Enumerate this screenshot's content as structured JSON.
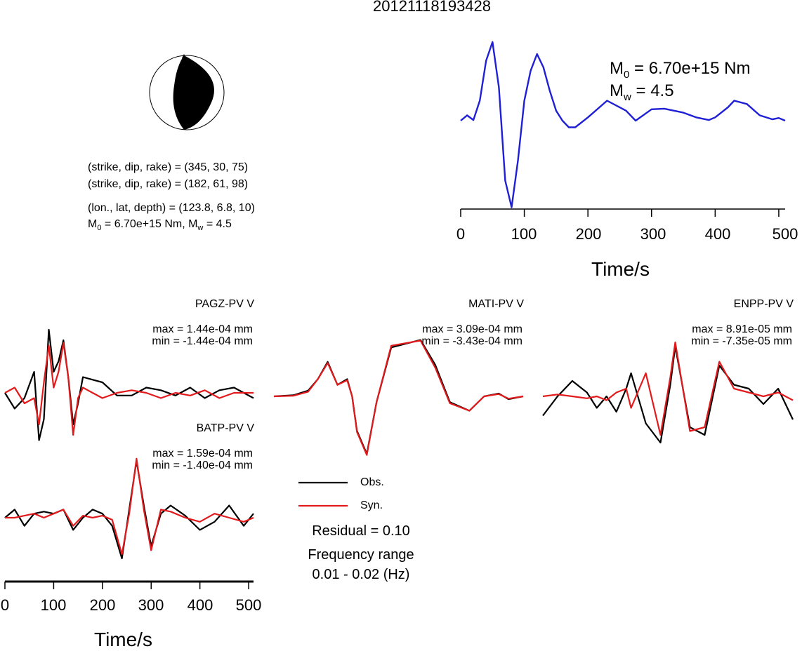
{
  "title": "20121118193428",
  "focal": {
    "plane1": "(strike, dip, rake) = (345, 30, 75)",
    "plane2": "(strike, dip, rake) = (182, 61, 98)",
    "location": "(lon., lat, depth) = (123.8, 6.8, 10)",
    "m0_prefix": "M",
    "m0_sub": "0",
    "m0_mid": " = 6.70e+15 Nm, M",
    "mw_sub": "w",
    "mw_val": " = 4.5"
  },
  "stf": {
    "m0_line_prefix": "M",
    "m0_line_sub": "0",
    "m0_line_val": " = 6.70e+15 Nm",
    "mw_line_prefix": "M",
    "mw_line_sub": "w",
    "mw_line_val": " = 4.5",
    "xlabel": "Time/s",
    "xticks": [
      "0",
      "100",
      "200",
      "300",
      "400",
      "500"
    ]
  },
  "stations": [
    {
      "name": "PAGZ-PV V",
      "max": "max = 1.44e-04 mm",
      "min": "min = -1.44e-04 mm"
    },
    {
      "name": "MATI-PV V",
      "max": "max = 3.09e-04 mm",
      "min": "min = -3.43e-04 mm"
    },
    {
      "name": "ENPP-PV V",
      "max": "max = 8.91e-05 mm",
      "min": "min = -7.35e-05 mm"
    },
    {
      "name": "BATP-PV V",
      "max": "max = 1.59e-04 mm",
      "min": "min = -1.40e-04 mm"
    }
  ],
  "waveform_axis": {
    "xlabel": "Time/s",
    "xticks": [
      "0",
      "100",
      "200",
      "300",
      "400",
      "500"
    ]
  },
  "legend": {
    "obs": "Obs.",
    "syn": "Syn."
  },
  "residual": "Residual = 0.10",
  "freq_label": "Frequency range",
  "freq_value": "0.01 - 0.02 (Hz)",
  "colors": {
    "obs": "#000000",
    "syn": "#e31a1c",
    "stf": "#1f1fd6"
  },
  "chart_data": [
    {
      "type": "line",
      "name_hint": "source time function",
      "xlabel": "Time/s",
      "xlim": [
        0,
        510
      ],
      "x": [
        0,
        10,
        20,
        30,
        40,
        50,
        60,
        70,
        80,
        90,
        100,
        110,
        120,
        130,
        140,
        150,
        160,
        170,
        180,
        200,
        230,
        260,
        275,
        300,
        320,
        350,
        370,
        390,
        400,
        420,
        430,
        450,
        470,
        490,
        500,
        510
      ],
      "values": [
        0.0,
        0.08,
        0.01,
        0.3,
        0.9,
        1.18,
        0.5,
        -0.9,
        -1.3,
        -0.6,
        0.3,
        0.75,
        1.0,
        0.8,
        0.45,
        0.15,
        0.0,
        -0.1,
        -0.1,
        0.05,
        0.3,
        0.15,
        0.0,
        0.17,
        0.18,
        0.12,
        0.05,
        0.01,
        0.05,
        0.2,
        0.3,
        0.25,
        0.08,
        0.02,
        0.04,
        0.0
      ]
    },
    {
      "type": "line",
      "xlim": [
        0,
        510
      ],
      "x": [
        0,
        20,
        40,
        60,
        70,
        80,
        90,
        100,
        110,
        120,
        130,
        140,
        150,
        160,
        180,
        200,
        230,
        260,
        290,
        320,
        350,
        380,
        410,
        440,
        470,
        510
      ],
      "series": [
        {
          "name": "Obs.",
          "values": [
            0.0,
            -0.3,
            -0.1,
            0.4,
            -0.9,
            -0.5,
            1.2,
            0.4,
            0.6,
            1.0,
            0.3,
            -0.6,
            -0.2,
            0.3,
            0.25,
            0.2,
            -0.05,
            -0.05,
            0.1,
            0.05,
            -0.05,
            0.1,
            -0.1,
            0.05,
            0.1,
            -0.1
          ]
        },
        {
          "name": "Syn.",
          "values": [
            0.0,
            0.1,
            -0.2,
            -0.1,
            -0.6,
            0.2,
            0.9,
            0.1,
            0.4,
            0.95,
            0.3,
            -0.8,
            -0.1,
            0.1,
            0.0,
            -0.1,
            0.0,
            0.05,
            0.0,
            -0.1,
            0.0,
            -0.05,
            0.05,
            -0.1,
            0.0,
            0.0
          ]
        }
      ]
    },
    {
      "type": "line",
      "xlim": [
        0,
        510
      ],
      "x": [
        0,
        40,
        70,
        90,
        110,
        130,
        150,
        160,
        170,
        190,
        210,
        240,
        300,
        330,
        360,
        400,
        430,
        460,
        480,
        510
      ],
      "series": [
        {
          "name": "Obs.",
          "values": [
            0.0,
            0.02,
            0.1,
            0.3,
            0.6,
            0.2,
            0.3,
            0.0,
            -0.6,
            -1.0,
            -0.1,
            0.85,
            0.98,
            0.55,
            -0.1,
            -0.25,
            0.0,
            0.05,
            -0.05,
            0.0
          ]
        },
        {
          "name": "Syn.",
          "values": [
            0.0,
            0.01,
            0.08,
            0.3,
            0.58,
            0.2,
            0.28,
            0.0,
            -0.62,
            -1.02,
            -0.1,
            0.88,
            0.97,
            0.5,
            -0.12,
            -0.25,
            0.0,
            0.04,
            -0.04,
            0.0
          ]
        }
      ]
    },
    {
      "type": "line",
      "xlim": [
        0,
        510
      ],
      "x": [
        0,
        30,
        60,
        90,
        110,
        130,
        150,
        170,
        180,
        210,
        240,
        260,
        270,
        300,
        330,
        360,
        390,
        420,
        450,
        480,
        510
      ],
      "series": [
        {
          "name": "Obs.",
          "values": [
            -0.5,
            0.0,
            0.4,
            0.1,
            -0.3,
            0.0,
            -0.4,
            0.2,
            0.6,
            -0.7,
            -1.2,
            0.3,
            1.3,
            -0.8,
            -1.0,
            0.8,
            0.3,
            0.2,
            -0.2,
            0.2,
            -0.6
          ]
        },
        {
          "name": "Syn.",
          "values": [
            0.0,
            0.05,
            0.0,
            -0.05,
            0.0,
            -0.1,
            0.1,
            0.2,
            -0.3,
            0.6,
            -1.0,
            0.5,
            1.4,
            -0.9,
            -0.8,
            0.9,
            0.2,
            0.1,
            0.0,
            0.1,
            -0.1
          ]
        }
      ]
    },
    {
      "type": "line",
      "xlim": [
        0,
        510
      ],
      "x": [
        0,
        20,
        40,
        60,
        80,
        100,
        120,
        140,
        160,
        180,
        200,
        220,
        240,
        255,
        270,
        285,
        300,
        320,
        340,
        370,
        400,
        430,
        460,
        490,
        510
      ],
      "series": [
        {
          "name": "Obs.",
          "values": [
            0.0,
            0.2,
            -0.2,
            0.1,
            0.15,
            0.1,
            0.2,
            -0.3,
            0.0,
            0.2,
            0.1,
            -0.2,
            -1.0,
            0.2,
            1.4,
            0.3,
            -0.7,
            0.1,
            0.3,
            0.05,
            -0.3,
            -0.1,
            0.3,
            -0.2,
            0.1
          ]
        },
        {
          "name": "Syn.",
          "values": [
            0.0,
            0.0,
            0.05,
            0.1,
            0.0,
            0.1,
            0.2,
            -0.2,
            0.05,
            0.0,
            0.05,
            -0.05,
            -0.9,
            0.1,
            1.45,
            0.2,
            -0.8,
            0.2,
            0.15,
            0.0,
            -0.1,
            0.1,
            0.0,
            -0.1,
            0.0
          ]
        }
      ]
    }
  ]
}
